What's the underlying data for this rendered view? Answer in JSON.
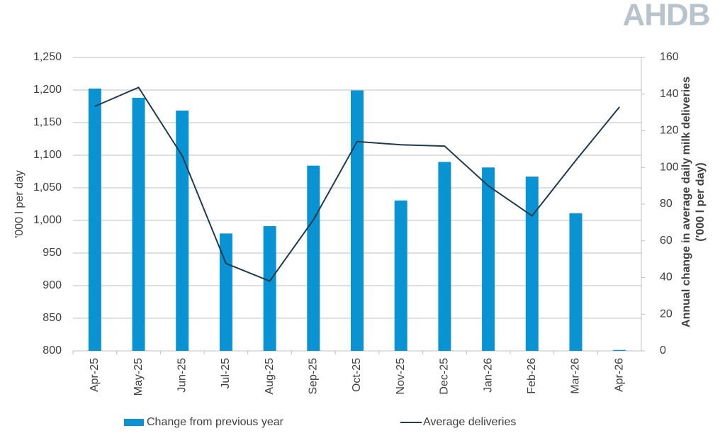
{
  "logo": "AHDB",
  "chart_data": {
    "type": "bar-line",
    "ylabel": "'000 l per day",
    "y2label": [
      "Annual change in average daily milk deliveries",
      "('000 l per day)"
    ],
    "categories": [
      "Apr-25",
      "May-25",
      "Jun-25",
      "Jul-25",
      "Aug-25",
      "Sep-25",
      "Oct-25",
      "Nov-25",
      "Dec-25",
      "Jan-26",
      "Feb-26",
      "Mar-26",
      "Apr-26"
    ],
    "series": [
      {
        "name": "Change from previous year",
        "type": "bar",
        "axis": "y2",
        "color": "#0a93d3",
        "values": [
          143,
          138,
          131,
          64,
          68,
          101,
          142,
          82,
          103,
          100,
          95,
          75,
          0.5
        ]
      },
      {
        "name": "Average deliveries",
        "type": "line",
        "axis": "y",
        "color": "#1f3b4d",
        "values": [
          1175,
          1204,
          1099,
          934,
          907,
          1001,
          1121,
          1116,
          1114,
          1053,
          1007,
          1092,
          1174
        ]
      }
    ],
    "ylim": [
      800,
      1250
    ],
    "yticks": [
      800,
      850,
      900,
      950,
      {
        "value": 1000,
        "label": "1,000"
      },
      {
        "value": 1050,
        "label": "1,050"
      },
      {
        "value": 1100,
        "label": "1,100"
      },
      {
        "value": 1150,
        "label": "1,150"
      },
      {
        "value": 1200,
        "label": "1,200"
      },
      {
        "value": 1250,
        "label": "1,250"
      }
    ],
    "y2lim": [
      0,
      160
    ],
    "y2ticks": [
      0,
      20,
      40,
      60,
      80,
      100,
      120,
      140,
      160
    ],
    "grid": true,
    "legend": "bottom"
  }
}
